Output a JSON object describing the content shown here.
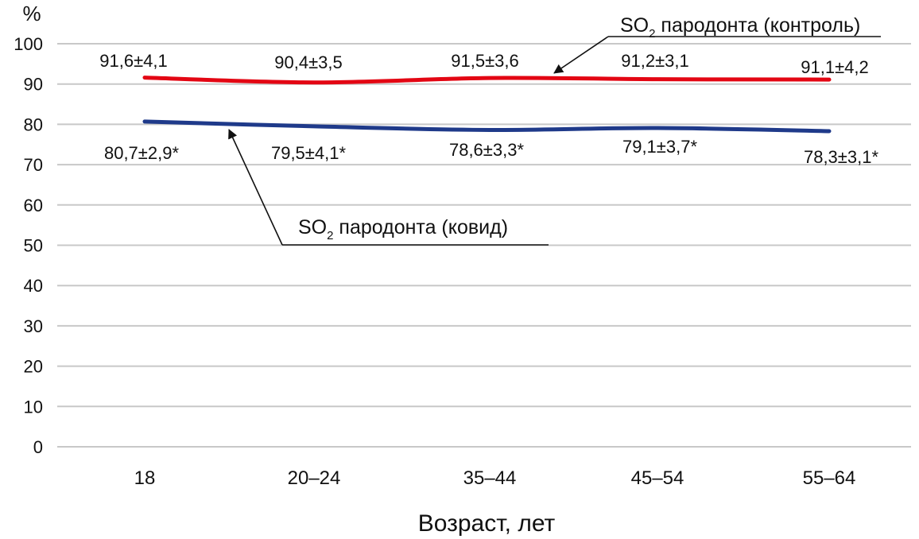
{
  "chart_data": {
    "type": "line",
    "categories": [
      "18",
      "20–24",
      "35–44",
      "45–54",
      "55–64"
    ],
    "ylim": [
      0,
      100
    ],
    "yticks": [
      0,
      10,
      20,
      30,
      40,
      50,
      60,
      70,
      80,
      90,
      100
    ],
    "y_unit": "%",
    "xlabel": "Возраст, лет",
    "grid": true,
    "series": [
      {
        "name": "SO2 пародонта (контроль)",
        "name_main": "SO",
        "name_sub": "2",
        "name_rest": " пародонта (контроль)",
        "color": "#e30613",
        "values": [
          91.6,
          90.4,
          91.5,
          91.2,
          91.1
        ],
        "labels": [
          "91,6±4,1",
          "90,4±3,5",
          "91,5±3,6",
          "91,2±3,1",
          "91,1±4,2"
        ]
      },
      {
        "name": "SO2 пародонта (ковид)",
        "name_main": "SO",
        "name_sub": "2",
        "name_rest": " пародонта (ковид)",
        "color": "#1f3a8a",
        "values": [
          80.7,
          79.5,
          78.6,
          79.1,
          78.3
        ],
        "labels": [
          "80,7±2,9*",
          "79,5±4,1*",
          "78,6±3,3*",
          "79,1±3,7*",
          "78,3±3,1*"
        ]
      }
    ]
  }
}
